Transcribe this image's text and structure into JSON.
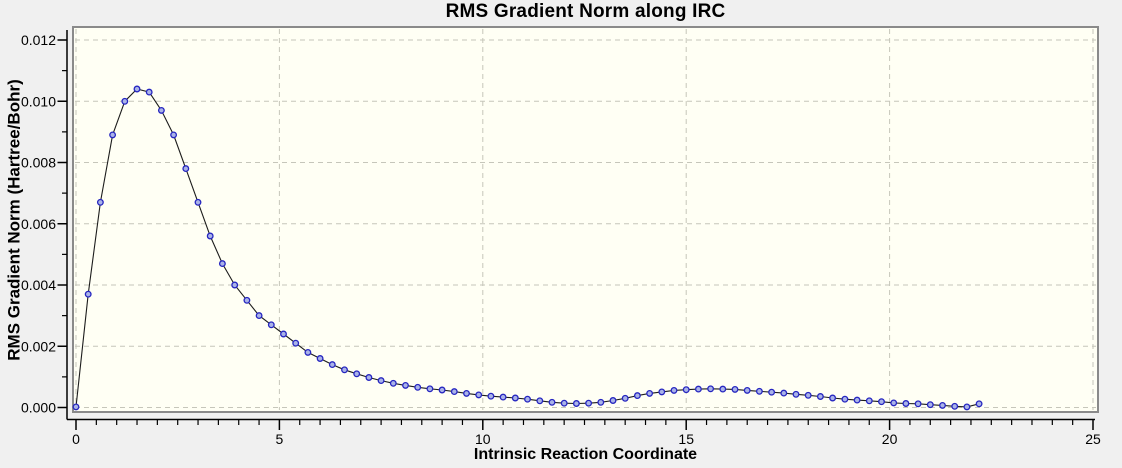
{
  "window": {
    "background_color": "#f0f0f0"
  },
  "chart_data": {
    "type": "line",
    "title": "RMS Gradient Norm along IRC",
    "xlabel": "Intrinsic Reaction Coordinate",
    "ylabel": "RMS Gradient Norm (Hartree/Bohr)",
    "xlim": [
      0,
      25
    ],
    "ylim": [
      0.0,
      0.012
    ],
    "x_major_ticks": [
      0,
      5,
      10,
      15,
      20,
      25
    ],
    "x_minor_tick_step": 0.5,
    "y_major_ticks": [
      0.0,
      0.002,
      0.004,
      0.006,
      0.008,
      0.01,
      0.012
    ],
    "y_minor_tick_step": 0.001,
    "y_tick_decimals": 3,
    "grid": "dashed-on-major-ticks",
    "legend_position": "none",
    "series": [
      {
        "name": "RMS gradient norm along IRC",
        "marker": "circle",
        "x": [
          0,
          0.3,
          0.6,
          0.9,
          1.2,
          1.5,
          1.8,
          2.1,
          2.4,
          2.7,
          3,
          3.3,
          3.6,
          3.9,
          4.2,
          4.5,
          4.8,
          5.1,
          5.4,
          5.7,
          6,
          6.3,
          6.6,
          6.9,
          7.2,
          7.5,
          7.8,
          8.1,
          8.4,
          8.7,
          9,
          9.3,
          9.6,
          9.9,
          10.2,
          10.5,
          10.8,
          11.1,
          11.4,
          11.7,
          12,
          12.3,
          12.6,
          12.9,
          13.2,
          13.5,
          13.8,
          14.1,
          14.4,
          14.7,
          15,
          15.3,
          15.6,
          15.9,
          16.2,
          16.5,
          16.8,
          17.1,
          17.4,
          17.7,
          18,
          18.3,
          18.6,
          18.9,
          19.2,
          19.5,
          19.8,
          20.1,
          20.4,
          20.7,
          21,
          21.3,
          21.6,
          21.9,
          22.2
        ],
        "y": [
          2e-05,
          0.0037,
          0.0067,
          0.0089,
          0.01,
          0.0104,
          0.0103,
          0.0097,
          0.0089,
          0.0078,
          0.0067,
          0.0056,
          0.0047,
          0.004,
          0.0035,
          0.003,
          0.0027,
          0.0024,
          0.0021,
          0.0018,
          0.0016,
          0.0014,
          0.00123,
          0.0011,
          0.00098,
          0.00088,
          0.00079,
          0.00072,
          0.00066,
          0.00061,
          0.00057,
          0.00052,
          0.00046,
          0.00041,
          0.00037,
          0.00034,
          0.00031,
          0.00027,
          0.00022,
          0.00017,
          0.00014,
          0.00013,
          0.00014,
          0.00017,
          0.00023,
          0.0003,
          0.00039,
          0.00046,
          0.00051,
          0.00056,
          0.00058,
          0.0006,
          0.00061,
          0.0006,
          0.00059,
          0.00056,
          0.00053,
          0.0005,
          0.00047,
          0.00043,
          0.0004,
          0.00036,
          0.00031,
          0.00027,
          0.00024,
          0.00022,
          0.00019,
          0.00015,
          0.00013,
          0.00012,
          9e-05,
          7e-05,
          4e-05,
          2e-05,
          0.00012
        ]
      }
    ]
  },
  "colors": {
    "page_bg": "#f0f0f0",
    "plot_bg": "#fffff4",
    "plot_border": "#8a8a8a",
    "grid": "#c6c6ba",
    "axis": "#000000",
    "series_line": "#1c1c1c",
    "marker_stroke": "#2626c0",
    "marker_fill": "#aab3e8",
    "text": "#000000"
  }
}
